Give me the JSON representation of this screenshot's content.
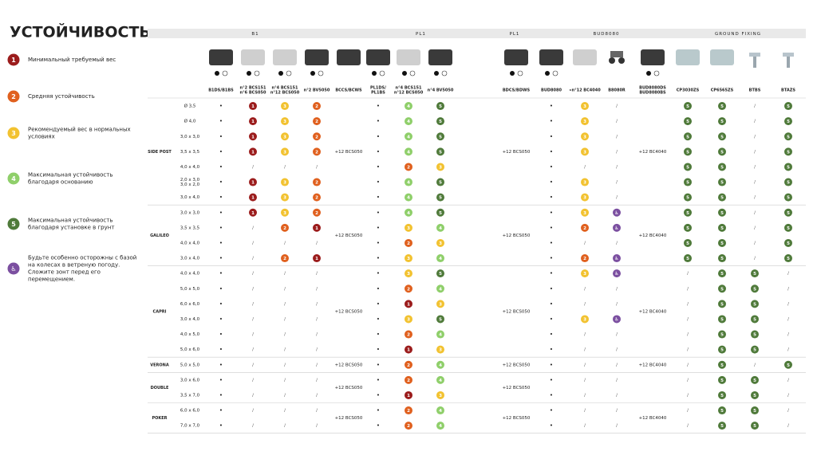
{
  "title": "УСТОЙЧИВОСТЬ",
  "legend": [
    {
      "marker": "1",
      "lines": [
        "Минимальный требуемый вес"
      ]
    },
    {
      "marker": "2",
      "lines": [
        "Средняя устойчивость"
      ]
    },
    {
      "marker": "3",
      "lines": [
        "Рекомендуемый вес в нормальных",
        "условиях"
      ]
    },
    {
      "marker": "4",
      "lines": [
        "Максимальная устойчивость",
        "благодаря основанию"
      ]
    },
    {
      "marker": "5",
      "lines": [
        "Максимальная устойчивость",
        "благодаря установке в грунт"
      ]
    },
    {
      "marker": "♿",
      "lines": [
        "Будьте особенно осторожны с базой",
        "на колесах в ветреную погоду.",
        "Сложите зонт перед его",
        "перемещением."
      ]
    }
  ],
  "table": {
    "bands": [
      "B1",
      "PL1",
      "PL1",
      "BUD8080",
      "GROUND FIXING"
    ],
    "columns": [
      [
        "B1DS/B1BS"
      ],
      [
        "n°2 BCS151",
        "n°6 BCS050"
      ],
      [
        "n°4 BCS151",
        "n°12 BCS050"
      ],
      [
        "n°2 BV5050"
      ],
      [
        "BCCS/BCWS"
      ],
      [
        "PL1DS/",
        "PL1BS"
      ],
      [
        "n°4 BCS151",
        "n°12 BCS050"
      ],
      [
        "n°4 BV5050"
      ],
      [
        "BDCS/BDWS"
      ],
      [
        "BUD8080"
      ],
      [
        "«n°12 BC4040"
      ],
      [
        "B8080R"
      ],
      [
        "BUD8080DS",
        "BUD8080BS"
      ],
      [
        "CP3030ZS"
      ],
      [
        "CP6565ZS"
      ],
      [
        "BTBS"
      ],
      [
        "BTAZS"
      ]
    ],
    "groups": [
      {
        "name": "SIDE POST",
        "bccs": "+12 BCS050",
        "bdcs": "+12 BCS050",
        "bud": "+12 BC4040",
        "rows": [
          {
            "size": [
              "Ø 3,5"
            ],
            "cells": [
              "•",
              "1",
              "3",
              "2",
              "•",
              "4",
              "5",
              "•",
              "3",
              "/",
              "5",
              "5",
              "/",
              "5"
            ]
          },
          {
            "size": [
              "Ø 4,0"
            ],
            "cells": [
              "•",
              "1",
              "3",
              "2",
              "•",
              "4",
              "5",
              "•",
              "3",
              "/",
              "5",
              "5",
              "/",
              "5"
            ]
          },
          {
            "size": [
              "3,0 x 3,0"
            ],
            "cells": [
              "•",
              "1",
              "3",
              "2",
              "•",
              "4",
              "5",
              "•",
              "3",
              "/",
              "5",
              "5",
              "/",
              "5"
            ]
          },
          {
            "size": [
              "3,5 x 3,5"
            ],
            "cells": [
              "•",
              "1",
              "3",
              "2",
              "•",
              "4",
              "5",
              "•",
              "3",
              "/",
              "5",
              "5",
              "/",
              "5"
            ]
          },
          {
            "size": [
              "4,0 x 4,0"
            ],
            "cells": [
              "•",
              "/",
              "/",
              "/",
              "•",
              "2",
              "3",
              "•",
              "/",
              "/",
              "5",
              "5",
              "/",
              "5"
            ]
          },
          {
            "size": [
              "2,0 x 3,0",
              "3,0 x 2,0"
            ],
            "cells": [
              "•",
              "1",
              "3",
              "2",
              "•",
              "4",
              "5",
              "•",
              "3",
              "/",
              "5",
              "5",
              "/",
              "5"
            ]
          },
          {
            "size": [
              "3,0 x 4,0"
            ],
            "cells": [
              "•",
              "1",
              "3",
              "2",
              "•",
              "4",
              "5",
              "•",
              "3",
              "/",
              "5",
              "5",
              "/",
              "5"
            ]
          }
        ]
      },
      {
        "name": "GALILEO",
        "bccs": "+12 BCS050",
        "bdcs": "+12 BCS050",
        "bud": "+12 BC4040",
        "rows": [
          {
            "size": [
              "3,0 x 3,0"
            ],
            "cells": [
              "•",
              "1",
              "3",
              "2",
              "•",
              "4",
              "5",
              "•",
              "3",
              "♿",
              "5",
              "5",
              "/",
              "5"
            ]
          },
          {
            "size": [
              "3,5 x 3,5"
            ],
            "cells": [
              "•",
              "/",
              "2",
              "1",
              "•",
              "3",
              "4",
              "•",
              "2",
              "♿",
              "5",
              "5",
              "/",
              "5"
            ]
          },
          {
            "size": [
              "4,0 x 4,0"
            ],
            "cells": [
              "•",
              "/",
              "/",
              "/",
              "•",
              "2",
              "3",
              "•",
              "/",
              "/",
              "5",
              "5",
              "/",
              "5"
            ]
          },
          {
            "size": [
              "3,0 x 4,0"
            ],
            "cells": [
              "•",
              "/",
              "2",
              "1",
              "•",
              "3",
              "4",
              "•",
              "2",
              "♿",
              "5",
              "5",
              "/",
              "5"
            ]
          }
        ]
      },
      {
        "name": "CAPRI",
        "bccs": "+12 BCS050",
        "bdcs": "+12 BCS050",
        "bud": "+12 BC4040",
        "rows": [
          {
            "size": [
              "4,0 x 4,0"
            ],
            "cells": [
              "•",
              "/",
              "/",
              "/",
              "•",
              "3",
              "5",
              "•",
              "3",
              "♿",
              "/",
              "5",
              "5",
              "/"
            ]
          },
          {
            "size": [
              "5,0 x 5,0"
            ],
            "cells": [
              "•",
              "/",
              "/",
              "/",
              "•",
              "2",
              "4",
              "•",
              "/",
              "/",
              "/",
              "5",
              "5",
              "/"
            ]
          },
          {
            "size": [
              "6,0 x 6,0"
            ],
            "cells": [
              "•",
              "/",
              "/",
              "/",
              "•",
              "1",
              "3",
              "•",
              "/",
              "/",
              "/",
              "5",
              "5",
              "/"
            ]
          },
          {
            "size": [
              "3,0 x 4,0"
            ],
            "cells": [
              "•",
              "/",
              "/",
              "/",
              "•",
              "3",
              "5",
              "•",
              "3",
              "♿",
              "/",
              "5",
              "5",
              "/"
            ]
          },
          {
            "size": [
              "4,0 x 5,0"
            ],
            "cells": [
              "•",
              "/",
              "/",
              "/",
              "•",
              "2",
              "4",
              "•",
              "/",
              "/",
              "/",
              "5",
              "5",
              "/"
            ]
          },
          {
            "size": [
              "5,0 x 6,0"
            ],
            "cells": [
              "•",
              "/",
              "/",
              "/",
              "•",
              "1",
              "3",
              "•",
              "/",
              "/",
              "/",
              "5",
              "5",
              "/"
            ]
          }
        ]
      },
      {
        "name": "VERONA",
        "bccs": "+12 BCS050",
        "bdcs": "+12 BCS050",
        "bud": "+12 BC4040",
        "rows": [
          {
            "size": [
              "5,0 x 5,0"
            ],
            "cells": [
              "•",
              "/",
              "/",
              "/",
              "•",
              "2",
              "4",
              "•",
              "/",
              "/",
              "/",
              "5",
              "/",
              "5"
            ]
          }
        ]
      },
      {
        "name": "DOUBLE",
        "bccs": "+12 BCS050",
        "bdcs": "+12 BCS050",
        "rows": [
          {
            "size": [
              "3,0 x 6,0"
            ],
            "cells": [
              "•",
              "/",
              "/",
              "/",
              "•",
              "2",
              "4",
              "•",
              "/",
              "/",
              "/",
              "5",
              "5",
              "/"
            ]
          },
          {
            "size": [
              "3,5 x 7,0"
            ],
            "cells": [
              "•",
              "/",
              "/",
              "/",
              "•",
              "1",
              "3",
              "•",
              "/",
              "/",
              "/",
              "5",
              "5",
              "/"
            ]
          }
        ]
      },
      {
        "name": "POKER",
        "bccs": "+12 BCS050",
        "bdcs": "+12 BCS050",
        "bud": "+12 BC4040",
        "rows": [
          {
            "size": [
              "6,0 x 6,0"
            ],
            "cells": [
              "•",
              "/",
              "/",
              "/",
              "•",
              "2",
              "4",
              "•",
              "/",
              "/",
              "/",
              "5",
              "5",
              "/"
            ]
          },
          {
            "size": [
              "7,0 x 7,0"
            ],
            "cells": [
              "•",
              "/",
              "/",
              "/",
              "•",
              "2",
              "4",
              "•",
              "/",
              "/",
              "/",
              "5",
              "5",
              "/"
            ]
          }
        ]
      }
    ]
  }
}
